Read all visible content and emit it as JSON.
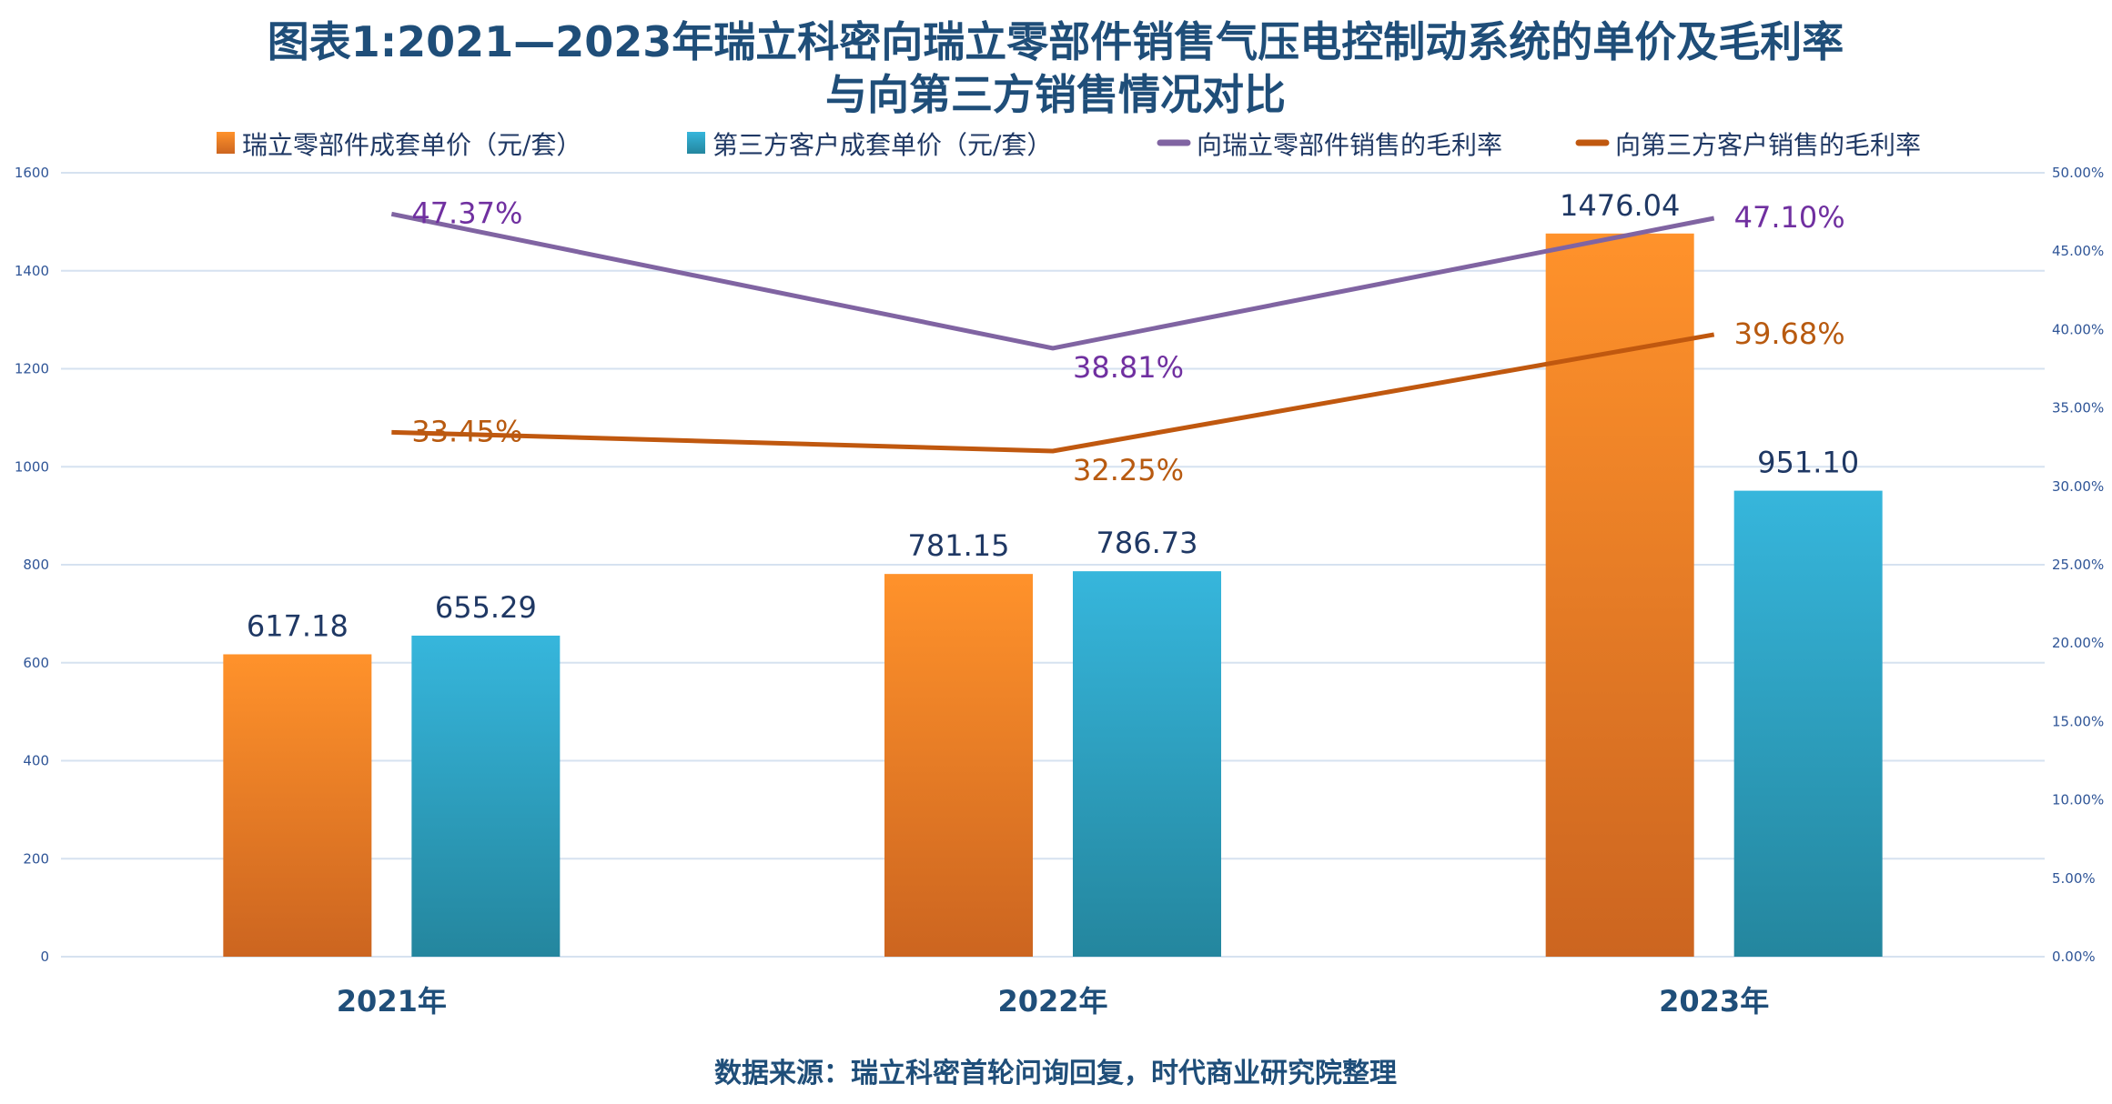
{
  "chart_data": {
    "type": "bar+line",
    "title_line1": "图表1:2021—2023年瑞立科密向瑞立零部件销售气压电控制动系统的单价及毛利率",
    "title_line2": "与向第三方销售情况对比",
    "categories": [
      "2021年",
      "2022年",
      "2023年"
    ],
    "series": [
      {
        "name": "瑞立零部件成套单价（元/套）",
        "type": "bar",
        "axis": "left",
        "color": "#F28A26",
        "values": [
          617.18,
          781.15,
          1476.04
        ],
        "labels": [
          "617.18",
          "781.15",
          "1476.04"
        ]
      },
      {
        "name": "第三方客户成套单价（元/套）",
        "type": "bar",
        "axis": "left",
        "color": "#31B0D5",
        "values": [
          655.29,
          786.73,
          951.1
        ],
        "labels": [
          "655.29",
          "786.73",
          "951.10"
        ]
      },
      {
        "name": "向瑞立零部件销售的毛利率",
        "type": "line",
        "axis": "right",
        "color": "#8064A2",
        "label_color": "#7030A0",
        "values": [
          47.37,
          38.81,
          47.1
        ],
        "labels": [
          "47.37%",
          "38.81%",
          "47.10%"
        ]
      },
      {
        "name": "向第三方客户销售的毛利率",
        "type": "line",
        "axis": "right",
        "color": "#C0580F",
        "label_color": "#B85A10",
        "values": [
          33.45,
          32.25,
          39.68
        ],
        "labels": [
          "33.45%",
          "32.25%",
          "39.68%"
        ]
      }
    ],
    "left_axis": {
      "ylim": [
        0,
        1600
      ],
      "ticks": [
        "0",
        "200",
        "400",
        "600",
        "800",
        "1000",
        "1200",
        "1400",
        "1600"
      ]
    },
    "right_axis": {
      "ylim": [
        0,
        50
      ],
      "ticks": [
        "0.00%",
        "5.00%",
        "10.00%",
        "15.00%",
        "20.00%",
        "25.00%",
        "30.00%",
        "35.00%",
        "40.00%",
        "45.00%",
        "50.00%"
      ]
    },
    "grid": true,
    "legend_position": "top",
    "source": "数据来源：瑞立科密首轮问询回复，时代商业研究院整理"
  }
}
